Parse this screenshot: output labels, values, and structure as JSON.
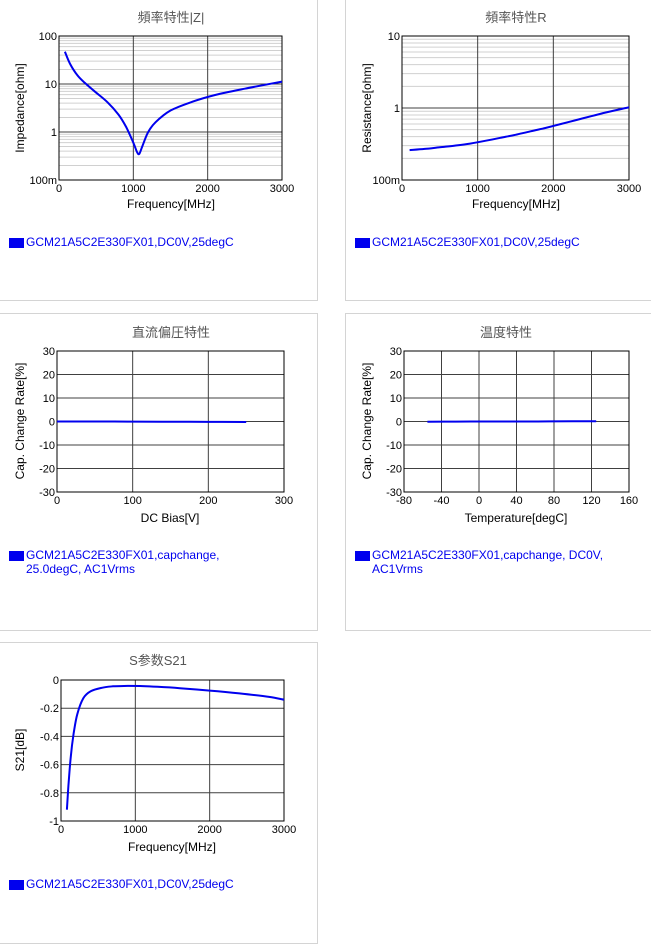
{
  "series_color": "#0000ee",
  "chart_data": [
    {
      "id": "impedance",
      "type": "line",
      "title": "頻率特性|Z|",
      "xlabel": "Frequency[MHz]",
      "ylabel": "Impedance[ohm]",
      "x_scale": "linear",
      "y_scale": "log",
      "xlim": [
        0,
        3000
      ],
      "ylim": [
        0.1,
        100
      ],
      "x_ticks": [
        0,
        1000,
        2000,
        3000
      ],
      "x_tick_labels": [
        "0",
        "1000",
        "2000",
        "3000"
      ],
      "y_ticks": [
        0.1,
        1,
        10,
        100
      ],
      "y_tick_labels": [
        "100m",
        "1",
        "10",
        "100"
      ],
      "grid": true,
      "legend": "GCM21A5C2E330FX01,DC0V,25degC",
      "series": [
        {
          "name": "GCM21A5C2E330FX01,DC0V,25degC",
          "x": [
            80,
            150,
            250,
            350,
            500,
            650,
            800,
            900,
            1000,
            1050,
            1080,
            1120,
            1200,
            1300,
            1500,
            1800,
            2100,
            2500,
            3000
          ],
          "y": [
            47,
            26,
            15,
            10.5,
            6.6,
            4.2,
            2.3,
            1.3,
            0.6,
            0.38,
            0.35,
            0.5,
            1.0,
            1.6,
            2.8,
            4.3,
            5.9,
            8.0,
            11.2
          ]
        }
      ]
    },
    {
      "id": "resistance",
      "type": "line",
      "title": "頻率特性R",
      "xlabel": "Frequency[MHz]",
      "ylabel": "Resistance[ohm]",
      "x_scale": "linear",
      "y_scale": "log",
      "xlim": [
        0,
        3000
      ],
      "ylim": [
        0.1,
        10
      ],
      "x_ticks": [
        0,
        1000,
        2000,
        3000
      ],
      "x_tick_labels": [
        "0",
        "1000",
        "2000",
        "3000"
      ],
      "y_ticks": [
        0.1,
        1,
        10
      ],
      "y_tick_labels": [
        "100m",
        "1",
        "10"
      ],
      "grid": true,
      "legend": "GCM21A5C2E330FX01,DC0V,25degC",
      "series": [
        {
          "name": "GCM21A5C2E330FX01,DC0V,25degC",
          "x": [
            100,
            300,
            500,
            700,
            900,
            1100,
            1300,
            1500,
            1700,
            1900,
            2100,
            2300,
            2500,
            2700,
            2900,
            3000
          ],
          "y": [
            0.26,
            0.27,
            0.285,
            0.3,
            0.32,
            0.35,
            0.385,
            0.425,
            0.475,
            0.53,
            0.6,
            0.68,
            0.77,
            0.87,
            0.97,
            1.02
          ]
        }
      ]
    },
    {
      "id": "dcbias",
      "type": "line",
      "title": "直流偏圧特性",
      "xlabel": "DC Bias[V]",
      "ylabel": "Cap. Change Rate[%]",
      "x_scale": "linear",
      "y_scale": "linear",
      "xlim": [
        0,
        300
      ],
      "ylim": [
        -30,
        30
      ],
      "x_ticks": [
        0,
        100,
        200,
        300
      ],
      "x_tick_labels": [
        "0",
        "100",
        "200",
        "300"
      ],
      "y_ticks": [
        -30,
        -20,
        -10,
        0,
        10,
        20,
        30
      ],
      "y_tick_labels": [
        "-30",
        "-20",
        "-10",
        "0",
        "10",
        "20",
        "30"
      ],
      "grid": true,
      "legend": "GCM21A5C2E330FX01,capchange, 25.0degC, AC1Vrms",
      "series": [
        {
          "name": "GCM21A5C2E330FX01,capchange, 25.0degC, AC1Vrms",
          "x": [
            0,
            50,
            100,
            150,
            200,
            250
          ],
          "y": [
            0,
            0,
            -0.05,
            -0.1,
            -0.15,
            -0.2
          ]
        }
      ]
    },
    {
      "id": "temperature",
      "type": "line",
      "title": "温度特性",
      "xlabel": "Temperature[degC]",
      "ylabel": "Cap. Change Rate[%]",
      "x_scale": "linear",
      "y_scale": "linear",
      "xlim": [
        -80,
        160
      ],
      "ylim": [
        -30,
        30
      ],
      "x_ticks": [
        -80,
        -40,
        0,
        40,
        80,
        120,
        160
      ],
      "x_tick_labels": [
        "-80",
        "-40",
        "0",
        "40",
        "80",
        "120",
        "160"
      ],
      "y_ticks": [
        -30,
        -20,
        -10,
        0,
        10,
        20,
        30
      ],
      "y_tick_labels": [
        "-30",
        "-20",
        "-10",
        "0",
        "10",
        "20",
        "30"
      ],
      "grid": true,
      "legend": "GCM21A5C2E330FX01,capchange, DC0V, AC1Vrms",
      "series": [
        {
          "name": "GCM21A5C2E330FX01,capchange, DC0V, AC1Vrms",
          "x": [
            -55,
            -25,
            0,
            25,
            50,
            75,
            100,
            125
          ],
          "y": [
            -0.1,
            -0.05,
            0,
            0,
            0,
            0.05,
            0.1,
            0.1
          ]
        }
      ]
    },
    {
      "id": "s21",
      "type": "line",
      "title": "S参数S21",
      "xlabel": "Frequency[MHz]",
      "ylabel": "S21[dB]",
      "x_scale": "linear",
      "y_scale": "linear",
      "xlim": [
        0,
        3000
      ],
      "ylim": [
        -1,
        0
      ],
      "x_ticks": [
        0,
        1000,
        2000,
        3000
      ],
      "x_tick_labels": [
        "0",
        "1000",
        "2000",
        "3000"
      ],
      "y_ticks": [
        -1,
        -0.8,
        -0.6,
        -0.4,
        -0.2,
        0
      ],
      "y_tick_labels": [
        "-1",
        "-0.8",
        "-0.6",
        "-0.4",
        "-0.2",
        "0"
      ],
      "grid": true,
      "legend": "GCM21A5C2E330FX01,DC0V,25degC",
      "series": [
        {
          "name": "GCM21A5C2E330FX01,DC0V,25degC",
          "x": [
            80,
            100,
            130,
            170,
            220,
            300,
            400,
            550,
            700,
            900,
            1100,
            1300,
            1600,
            2000,
            2400,
            2800,
            3000
          ],
          "y": [
            -0.92,
            -0.75,
            -0.55,
            -0.38,
            -0.24,
            -0.13,
            -0.08,
            -0.055,
            -0.045,
            -0.042,
            -0.043,
            -0.048,
            -0.058,
            -0.075,
            -0.095,
            -0.12,
            -0.14
          ]
        }
      ]
    }
  ]
}
